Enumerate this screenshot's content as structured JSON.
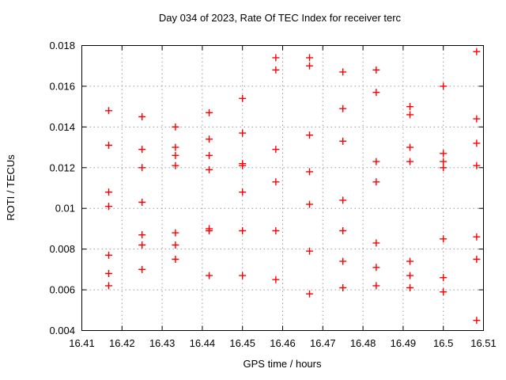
{
  "chart_data": {
    "type": "scatter",
    "title": "Day 034 of 2023, Rate Of TEC Index for receiver terc",
    "xlabel": "GPS time / hours",
    "ylabel": "ROTI / TECUs",
    "xlim": [
      16.41,
      16.51
    ],
    "ylim": [
      0.004,
      0.018
    ],
    "x_ticks": [
      16.41,
      16.42,
      16.43,
      16.44,
      16.45,
      16.46,
      16.47,
      16.48,
      16.49,
      16.5,
      16.51
    ],
    "x_tick_labels": [
      "16.41",
      "16.42",
      "16.43",
      "16.44",
      "16.45",
      "16.46",
      "16.47",
      "16.48",
      "16.49",
      "16.5",
      "16.51"
    ],
    "y_ticks": [
      0.004,
      0.006,
      0.008,
      0.01,
      0.012,
      0.014,
      0.016,
      0.018
    ],
    "y_tick_labels": [
      "0.004",
      "0.006",
      "0.008",
      "0.01",
      "0.012",
      "0.014",
      "0.016",
      "0.018"
    ],
    "grid": true,
    "grid_color": "#9a9a9a",
    "legend": "none",
    "marker": {
      "shape": "plus",
      "color": "#ff0000",
      "size": 9
    },
    "series": [
      {
        "name": "ROTI",
        "points": [
          [
            16.4167,
            0.0148
          ],
          [
            16.4167,
            0.0131
          ],
          [
            16.4167,
            0.0108
          ],
          [
            16.4167,
            0.0101
          ],
          [
            16.4167,
            0.0077
          ],
          [
            16.4167,
            0.0068
          ],
          [
            16.4167,
            0.0062
          ],
          [
            16.425,
            0.0145
          ],
          [
            16.425,
            0.0129
          ],
          [
            16.425,
            0.012
          ],
          [
            16.425,
            0.0103
          ],
          [
            16.425,
            0.0087
          ],
          [
            16.425,
            0.0082
          ],
          [
            16.425,
            0.007
          ],
          [
            16.4333,
            0.014
          ],
          [
            16.4333,
            0.013
          ],
          [
            16.4333,
            0.0126
          ],
          [
            16.4333,
            0.0121
          ],
          [
            16.4333,
            0.0088
          ],
          [
            16.4333,
            0.0082
          ],
          [
            16.4333,
            0.0075
          ],
          [
            16.4417,
            0.0147
          ],
          [
            16.4417,
            0.0134
          ],
          [
            16.4417,
            0.0126
          ],
          [
            16.4417,
            0.0119
          ],
          [
            16.4417,
            0.009
          ],
          [
            16.4417,
            0.0089
          ],
          [
            16.4417,
            0.0067
          ],
          [
            16.45,
            0.0154
          ],
          [
            16.45,
            0.0137
          ],
          [
            16.45,
            0.0122
          ],
          [
            16.45,
            0.0121
          ],
          [
            16.45,
            0.0108
          ],
          [
            16.45,
            0.0089
          ],
          [
            16.45,
            0.0067
          ],
          [
            16.4583,
            0.0174
          ],
          [
            16.4583,
            0.0168
          ],
          [
            16.4583,
            0.0129
          ],
          [
            16.4583,
            0.0113
          ],
          [
            16.4583,
            0.0089
          ],
          [
            16.4583,
            0.0065
          ],
          [
            16.4667,
            0.0174
          ],
          [
            16.4667,
            0.017
          ],
          [
            16.4667,
            0.0136
          ],
          [
            16.4667,
            0.0118
          ],
          [
            16.4667,
            0.0102
          ],
          [
            16.4667,
            0.0079
          ],
          [
            16.4667,
            0.0058
          ],
          [
            16.475,
            0.0167
          ],
          [
            16.475,
            0.0149
          ],
          [
            16.475,
            0.0133
          ],
          [
            16.475,
            0.0104
          ],
          [
            16.475,
            0.0089
          ],
          [
            16.475,
            0.0074
          ],
          [
            16.475,
            0.0061
          ],
          [
            16.4833,
            0.0168
          ],
          [
            16.4833,
            0.0157
          ],
          [
            16.4833,
            0.0123
          ],
          [
            16.4833,
            0.0113
          ],
          [
            16.4833,
            0.0083
          ],
          [
            16.4833,
            0.0071
          ],
          [
            16.4833,
            0.0062
          ],
          [
            16.4917,
            0.015
          ],
          [
            16.4917,
            0.0146
          ],
          [
            16.4917,
            0.013
          ],
          [
            16.4917,
            0.0123
          ],
          [
            16.4917,
            0.0074
          ],
          [
            16.4917,
            0.0067
          ],
          [
            16.4917,
            0.0061
          ],
          [
            16.5,
            0.016
          ],
          [
            16.5,
            0.0127
          ],
          [
            16.5,
            0.0123
          ],
          [
            16.5,
            0.012
          ],
          [
            16.5,
            0.0085
          ],
          [
            16.5,
            0.0066
          ],
          [
            16.5,
            0.0059
          ],
          [
            16.5083,
            0.0177
          ],
          [
            16.5083,
            0.0144
          ],
          [
            16.5083,
            0.0132
          ],
          [
            16.5083,
            0.0121
          ],
          [
            16.5083,
            0.0086
          ],
          [
            16.5083,
            0.0075
          ],
          [
            16.5083,
            0.0045
          ]
        ]
      }
    ]
  }
}
